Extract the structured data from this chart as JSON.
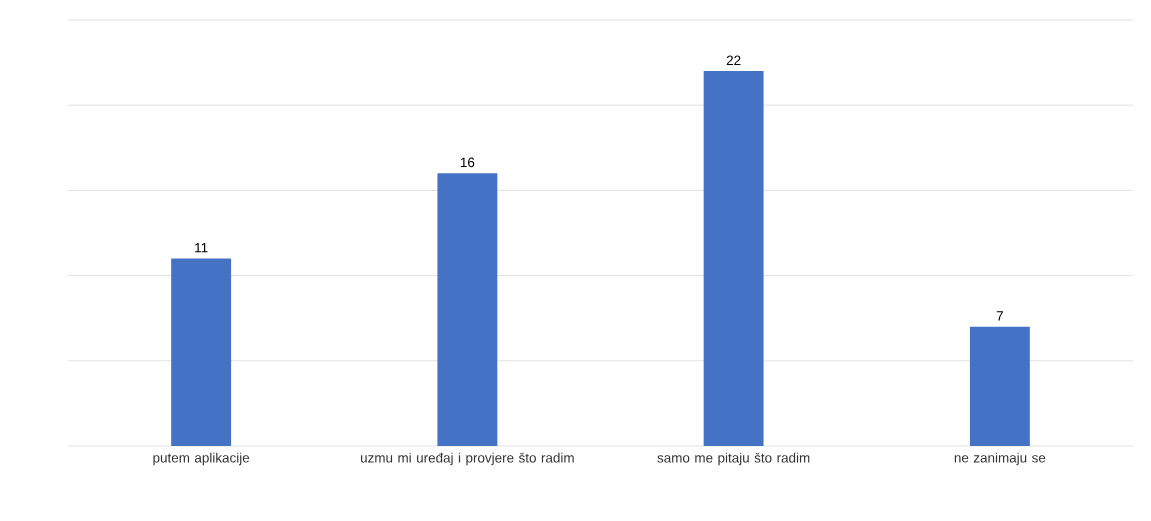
{
  "chart_data": {
    "type": "bar",
    "categories": [
      "putem aplikacije",
      "uzmu mi uređaj i provjere što radim",
      "samo me pitaju što radim",
      "ne zanimaju se"
    ],
    "values": [
      11,
      16,
      22,
      7
    ],
    "color": "#4472c4",
    "data_labels": true,
    "grid": "y",
    "tick_labels": "x",
    "ylim": [
      0,
      25
    ],
    "yticks": [
      {
        "value": 0,
        "label": null
      },
      {
        "value": 5,
        "label": null
      },
      {
        "value": 10,
        "label": null
      },
      {
        "value": 15,
        "label": null
      },
      {
        "value": 20,
        "label": null
      },
      {
        "value": 25,
        "label": null
      }
    ]
  }
}
